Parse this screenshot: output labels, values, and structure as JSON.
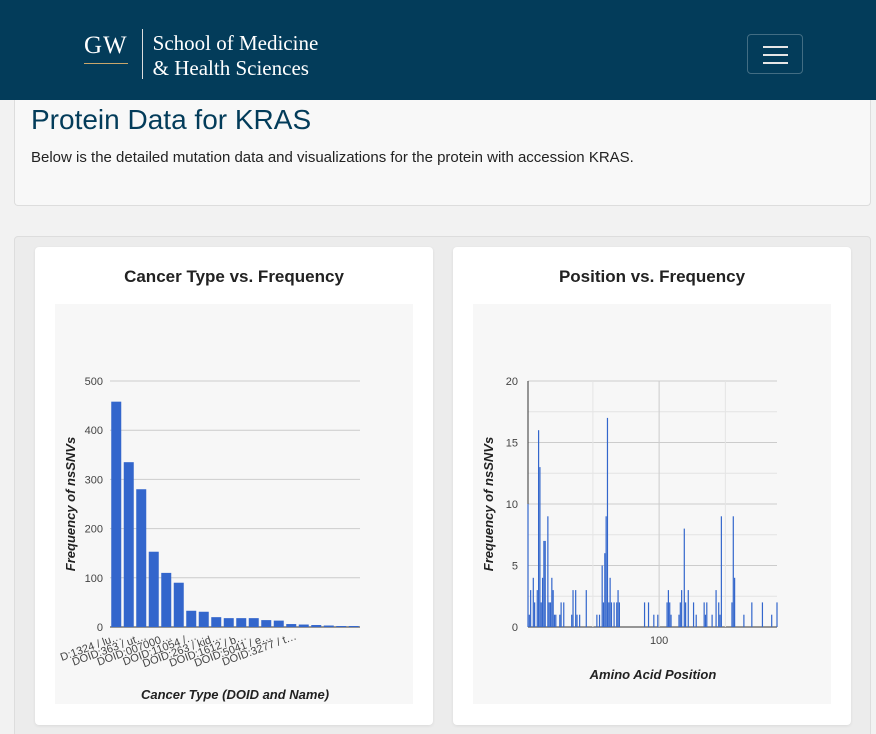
{
  "navbar": {
    "logo_mark": "GW",
    "logo_line1": "School of Medicine",
    "logo_line2": "& Health Sciences"
  },
  "header": {
    "title": "Protein Data for KRAS",
    "description": "Below is the detailed mutation data and visualizations for the protein with accession KRAS."
  },
  "colors": {
    "navbar": "#033c5a",
    "bars": "#3366cc",
    "gold": "#c9a66b"
  },
  "chart_data": [
    {
      "type": "bar",
      "title": "Cancer Type vs. Frequency",
      "xlabel": "Cancer Type (DOID and Name)",
      "ylabel": "Frequency of nsSNVs",
      "ylim": [
        0,
        500
      ],
      "yticks": [
        0,
        100,
        200,
        300,
        400,
        500
      ],
      "categories": [
        "D:1324 / lu…",
        "",
        "DOID:363 / ut…",
        "",
        "DOID:007000…",
        "",
        "DOID:11054 /…",
        "",
        "DOID:263 / kid…",
        "",
        "DOID:1612 / b…",
        "",
        "DOID:5041 / e…",
        "",
        "DOID:3277 / t…",
        "",
        "",
        "",
        "",
        ""
      ],
      "values": [
        458,
        335,
        280,
        153,
        110,
        90,
        33,
        31,
        20,
        18,
        18,
        18,
        14,
        13,
        6,
        5,
        4,
        3,
        2,
        2
      ]
    },
    {
      "type": "bar",
      "title": "Position vs. Frequency",
      "xlabel": "Amino Acid Position",
      "ylabel": "Frequency of nsSNVs",
      "ylim": [
        0,
        20
      ],
      "yticks": [
        0,
        5,
        10,
        15,
        20
      ],
      "xlim": [
        1,
        189
      ],
      "xticks": [
        100
      ],
      "positions": [
        1,
        2,
        3,
        5,
        6,
        8,
        9,
        10,
        11,
        12,
        13,
        14,
        16,
        17,
        18,
        19,
        20,
        21,
        22,
        25,
        26,
        28,
        34,
        35,
        37,
        38,
        40,
        45,
        53,
        55,
        57,
        58,
        59,
        60,
        61,
        62,
        63,
        64,
        66,
        68,
        69,
        70,
        89,
        92,
        96,
        99,
        106,
        107,
        108,
        109,
        115,
        116,
        117,
        119,
        120,
        122,
        126,
        128,
        134,
        135,
        136,
        140,
        143,
        145,
        146,
        147,
        155,
        156,
        157,
        164,
        170,
        178,
        185,
        189
      ],
      "values": [
        10,
        1,
        3,
        4,
        2,
        3,
        16,
        13,
        2,
        4,
        7,
        7,
        9,
        2,
        2,
        4,
        3,
        1,
        1,
        1,
        2,
        2,
        1,
        3,
        3,
        1,
        1,
        3,
        1,
        1,
        5,
        2,
        6,
        9,
        17,
        2,
        4,
        2,
        2,
        2,
        3,
        2,
        2,
        2,
        1,
        1,
        2,
        3,
        2,
        1,
        1,
        2,
        3,
        8,
        2,
        3,
        2,
        1,
        2,
        1,
        2,
        1,
        3,
        2,
        1,
        9,
        2,
        9,
        4,
        1,
        2,
        2,
        1,
        2
      ]
    }
  ]
}
